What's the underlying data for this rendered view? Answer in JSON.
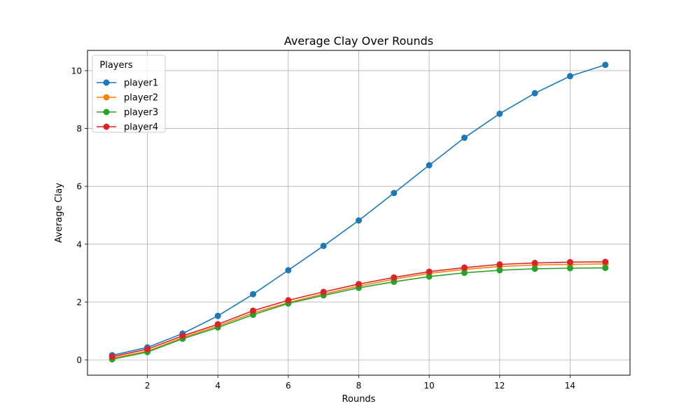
{
  "chart_data": {
    "type": "line",
    "title": "Average Clay Over Rounds",
    "xlabel": "Rounds",
    "ylabel": "Average Clay",
    "x": [
      1,
      2,
      3,
      4,
      5,
      6,
      7,
      8,
      9,
      10,
      11,
      12,
      13,
      14,
      15
    ],
    "xlim": [
      0.3,
      15.7
    ],
    "ylim": [
      -0.53,
      10.7
    ],
    "xticks": [
      2,
      4,
      6,
      8,
      10,
      12,
      14
    ],
    "yticks": [
      0,
      2,
      4,
      6,
      8,
      10
    ],
    "grid": true,
    "legend": {
      "title": "Players",
      "position": "top-left"
    },
    "series": [
      {
        "name": "player1",
        "color": "#1f77b4",
        "values": [
          0.16,
          0.43,
          0.91,
          1.52,
          2.27,
          3.1,
          3.94,
          4.82,
          5.77,
          6.73,
          7.68,
          8.51,
          9.22,
          9.81,
          10.2
        ]
      },
      {
        "name": "player2",
        "color": "#ff7f0e",
        "values": [
          0.06,
          0.3,
          0.77,
          1.17,
          1.62,
          1.98,
          2.28,
          2.55,
          2.79,
          2.99,
          3.13,
          3.23,
          3.28,
          3.3,
          3.32
        ]
      },
      {
        "name": "player3",
        "color": "#2ca02c",
        "values": [
          0.02,
          0.27,
          0.73,
          1.12,
          1.56,
          1.95,
          2.23,
          2.49,
          2.7,
          2.88,
          3.01,
          3.1,
          3.15,
          3.17,
          3.18
        ]
      },
      {
        "name": "player4",
        "color": "#d62728",
        "values": [
          0.11,
          0.37,
          0.83,
          1.23,
          1.7,
          2.06,
          2.35,
          2.62,
          2.85,
          3.05,
          3.19,
          3.3,
          3.35,
          3.38,
          3.39
        ]
      }
    ]
  }
}
